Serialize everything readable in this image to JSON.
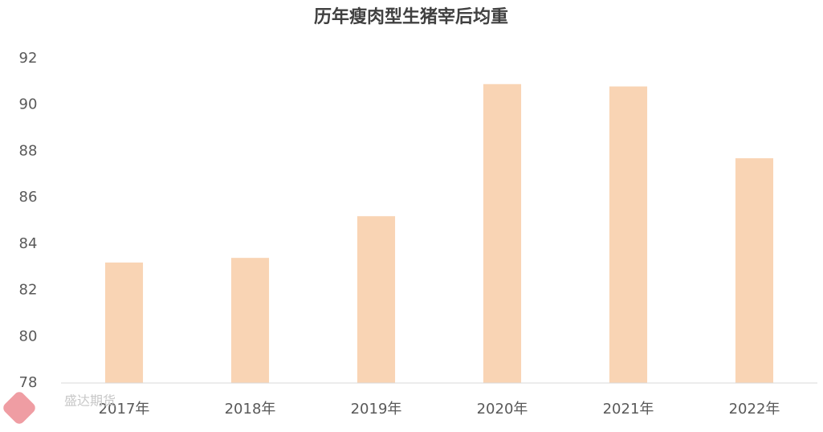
{
  "chart_data": {
    "type": "bar",
    "title": "历年瘦肉型生猪宰后均重",
    "categories": [
      "2017年",
      "2018年",
      "2019年",
      "2020年",
      "2021年",
      "2022年"
    ],
    "values": [
      83.2,
      83.4,
      85.2,
      90.9,
      90.8,
      87.7
    ],
    "color": "#f9d4b4",
    "ylim": [
      78,
      92
    ],
    "yticks": [
      78,
      80,
      82,
      84,
      86,
      88,
      90,
      92
    ],
    "grid": false,
    "watermark": "盛达期货"
  }
}
